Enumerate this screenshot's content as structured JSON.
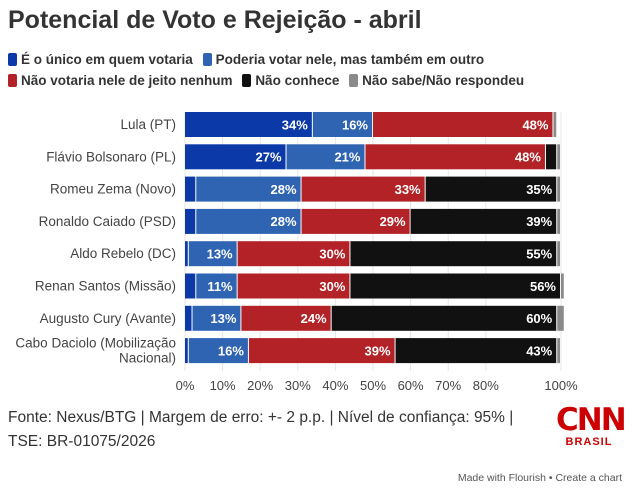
{
  "title": "Potencial de Voto e Rejeição - abril",
  "chart_data": {
    "type": "bar",
    "orientation": "horizontal",
    "stacked": true,
    "title": "Potencial de Voto e Rejeição - abril",
    "categories": [
      "Lula (PT)",
      "Flávio Bolsonaro (PL)",
      "Romeu Zema (Novo)",
      "Ronaldo Caiado (PSD)",
      "Aldo Rebelo (DC)",
      "Renan Santos (Missão)",
      "Augusto Cury (Avante)",
      "Cabo Daciolo (Mobilização Nacional)"
    ],
    "series": [
      {
        "name": "É o único em quem votaria",
        "color": "#0b3aa8",
        "values": [
          34,
          27,
          3,
          3,
          1,
          3,
          2,
          1
        ]
      },
      {
        "name": "Poderia votar nele, mas também em outro",
        "color": "#2f64b2",
        "values": [
          16,
          21,
          28,
          28,
          13,
          11,
          13,
          16
        ]
      },
      {
        "name": "Não votaria nele de jeito nenhum",
        "color": "#b22226",
        "values": [
          48,
          48,
          33,
          29,
          30,
          30,
          24,
          39
        ]
      },
      {
        "name": "Não conhece",
        "color": "#111111",
        "values": [
          0,
          3,
          35,
          39,
          55,
          56,
          60,
          43
        ]
      },
      {
        "name": "Não sabe/Não respondeu",
        "color": "#8a8a8a",
        "values": [
          1,
          1,
          1,
          1,
          1,
          1,
          2,
          1
        ]
      }
    ],
    "data_labels": [
      [
        "34%",
        "16%",
        "48%",
        "",
        ""
      ],
      [
        "27%",
        "21%",
        "48%",
        "",
        ""
      ],
      [
        "",
        "28%",
        "33%",
        "35%",
        ""
      ],
      [
        "",
        "28%",
        "29%",
        "39%",
        ""
      ],
      [
        "",
        "13%",
        "30%",
        "55%",
        ""
      ],
      [
        "",
        "11%",
        "30%",
        "56%",
        ""
      ],
      [
        "",
        "13%",
        "24%",
        "60%",
        ""
      ],
      [
        "",
        "16%",
        "39%",
        "43%",
        ""
      ]
    ],
    "xlim": [
      0,
      100
    ],
    "xticks": [
      "0%",
      "10%",
      "20%",
      "30%",
      "40%",
      "50%",
      "60%",
      "70%",
      "80%",
      "100%"
    ],
    "xtick_values": [
      0,
      10,
      20,
      30,
      40,
      50,
      60,
      70,
      80,
      100
    ],
    "grid": true,
    "legend": "top"
  },
  "footer": {
    "line1": "Fonte: Nexus/BTG | Margem de erro: +- 2 p.p. | Nível de confiança: 95% |",
    "line2": "TSE: BR-01075/2026"
  },
  "logo": {
    "main": "CNN",
    "sub": "BRASIL"
  },
  "credit": "Made with Flourish • Create a chart"
}
